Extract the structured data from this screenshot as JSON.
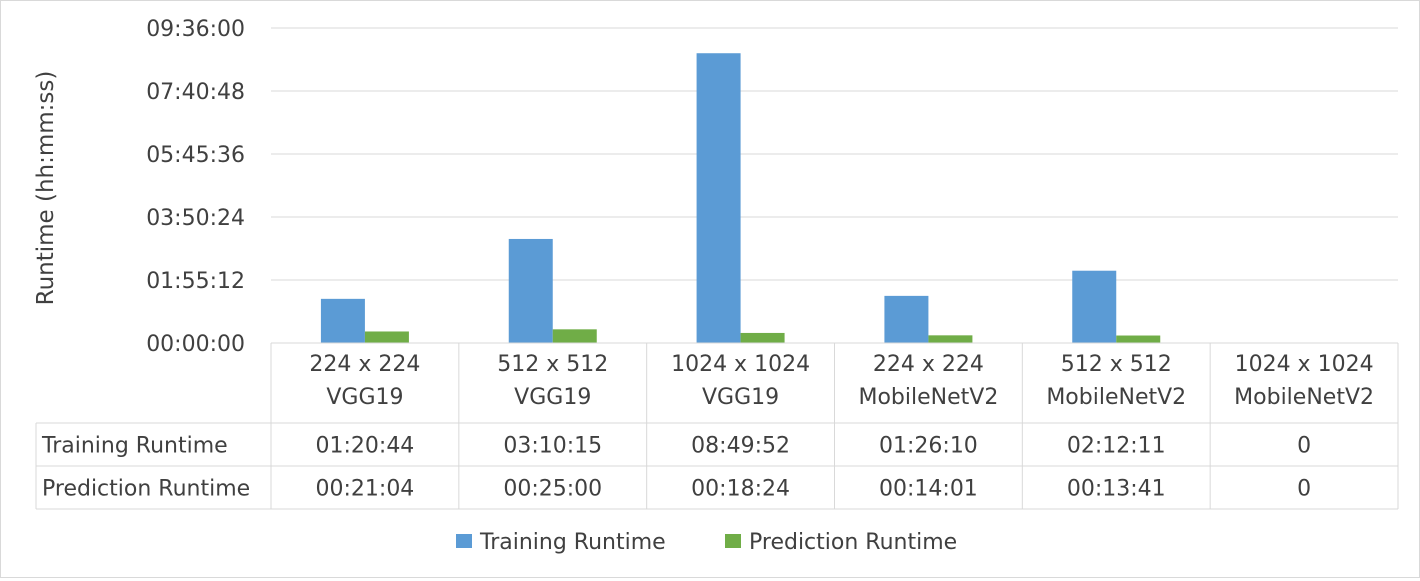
{
  "chart_data": {
    "type": "bar",
    "ylabel": "Runtime (hh:mm:ss)",
    "xlabel": "",
    "ylim_seconds": [
      0,
      34560
    ],
    "y_tick_seconds": [
      0,
      6912,
      13824,
      20736,
      27648,
      34560
    ],
    "y_tick_labels": [
      "00:00:00",
      "01:55:12",
      "03:50:24",
      "05:45:36",
      "07:40:48",
      "09:36:00"
    ],
    "grid": true,
    "legend_position": "bottom",
    "categories": [
      [
        "224 x 224",
        "VGG19"
      ],
      [
        "512 x 512",
        "VGG19"
      ],
      [
        "1024 x 1024",
        "VGG19"
      ],
      [
        "224 x 224",
        "MobileNetV2"
      ],
      [
        "512 x 512",
        "MobileNetV2"
      ],
      [
        "1024 x 1024",
        "MobileNetV2"
      ]
    ],
    "series": [
      {
        "name": "Training Runtime",
        "color": "#5b9bd5",
        "labels": [
          "01:20:44",
          "03:10:15",
          "08:49:52",
          "01:26:10",
          "02:12:11",
          "0"
        ],
        "values_seconds": [
          4844,
          11415,
          31792,
          5170,
          7931,
          0
        ]
      },
      {
        "name": "Prediction Runtime",
        "color": "#70ad47",
        "labels": [
          "00:21:04",
          "00:25:00",
          "00:18:24",
          "00:14:01",
          "00:13:41",
          "0"
        ],
        "values_seconds": [
          1264,
          1500,
          1104,
          841,
          821,
          0
        ]
      }
    ]
  }
}
